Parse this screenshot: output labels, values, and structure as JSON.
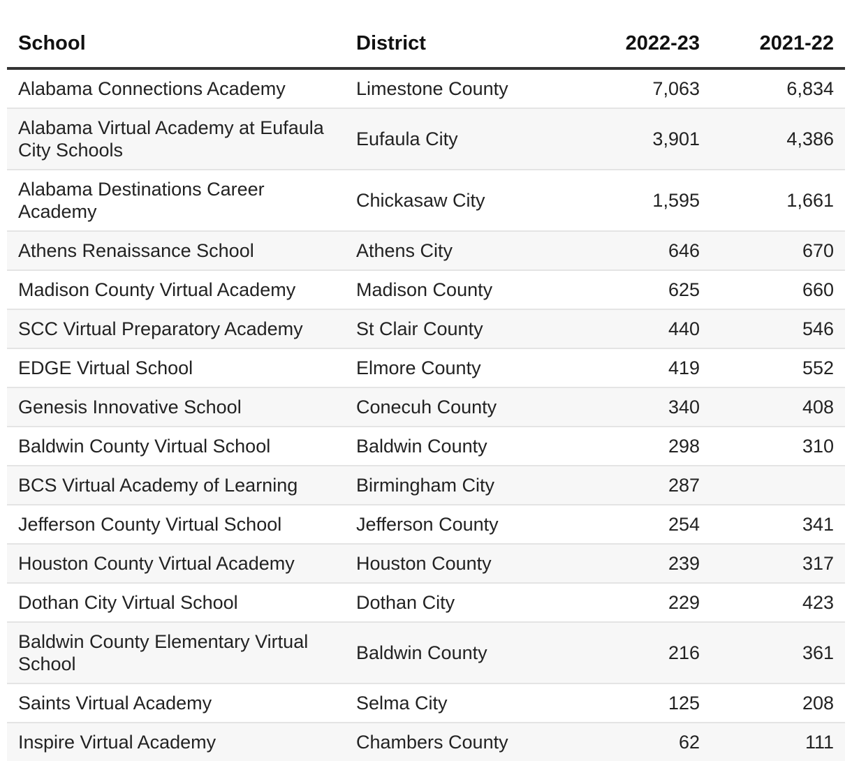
{
  "table": {
    "headers": {
      "school": "School",
      "district": "District",
      "year1": "2022-23",
      "year2": "2021-22"
    },
    "rows": [
      {
        "school": "Alabama Connections Academy",
        "district": "Limestone County",
        "y2023": "7,063",
        "y2022": "6,834"
      },
      {
        "school": "Alabama Virtual Academy at Eufaula City Schools",
        "district": "Eufaula City",
        "y2023": "3,901",
        "y2022": "4,386"
      },
      {
        "school": "Alabama Destinations Career Academy",
        "district": "Chickasaw City",
        "y2023": "1,595",
        "y2022": "1,661"
      },
      {
        "school": "Athens Renaissance School",
        "district": "Athens City",
        "y2023": "646",
        "y2022": "670"
      },
      {
        "school": "Madison County Virtual Academy",
        "district": "Madison County",
        "y2023": "625",
        "y2022": "660"
      },
      {
        "school": "SCC Virtual Preparatory Academy",
        "district": "St Clair County",
        "y2023": "440",
        "y2022": "546"
      },
      {
        "school": "EDGE Virtual School",
        "district": "Elmore County",
        "y2023": "419",
        "y2022": "552"
      },
      {
        "school": "Genesis Innovative School",
        "district": "Conecuh County",
        "y2023": "340",
        "y2022": "408"
      },
      {
        "school": "Baldwin County Virtual School",
        "district": "Baldwin County",
        "y2023": "298",
        "y2022": "310"
      },
      {
        "school": "BCS Virtual Academy of Learning",
        "district": "Birmingham City",
        "y2023": "287",
        "y2022": ""
      },
      {
        "school": "Jefferson County Virtual School",
        "district": "Jefferson County",
        "y2023": "254",
        "y2022": "341"
      },
      {
        "school": "Houston County Virtual Academy",
        "district": "Houston County",
        "y2023": "239",
        "y2022": "317"
      },
      {
        "school": "Dothan City Virtual School",
        "district": "Dothan City",
        "y2023": "229",
        "y2022": "423"
      },
      {
        "school": "Baldwin County Elementary Virtual School",
        "district": "Baldwin County",
        "y2023": "216",
        "y2022": "361"
      },
      {
        "school": "Saints Virtual Academy",
        "district": "Selma City",
        "y2023": "125",
        "y2022": "208"
      },
      {
        "school": "Inspire Virtual Academy",
        "district": "Chambers County",
        "y2023": "62",
        "y2022": "111"
      }
    ]
  }
}
